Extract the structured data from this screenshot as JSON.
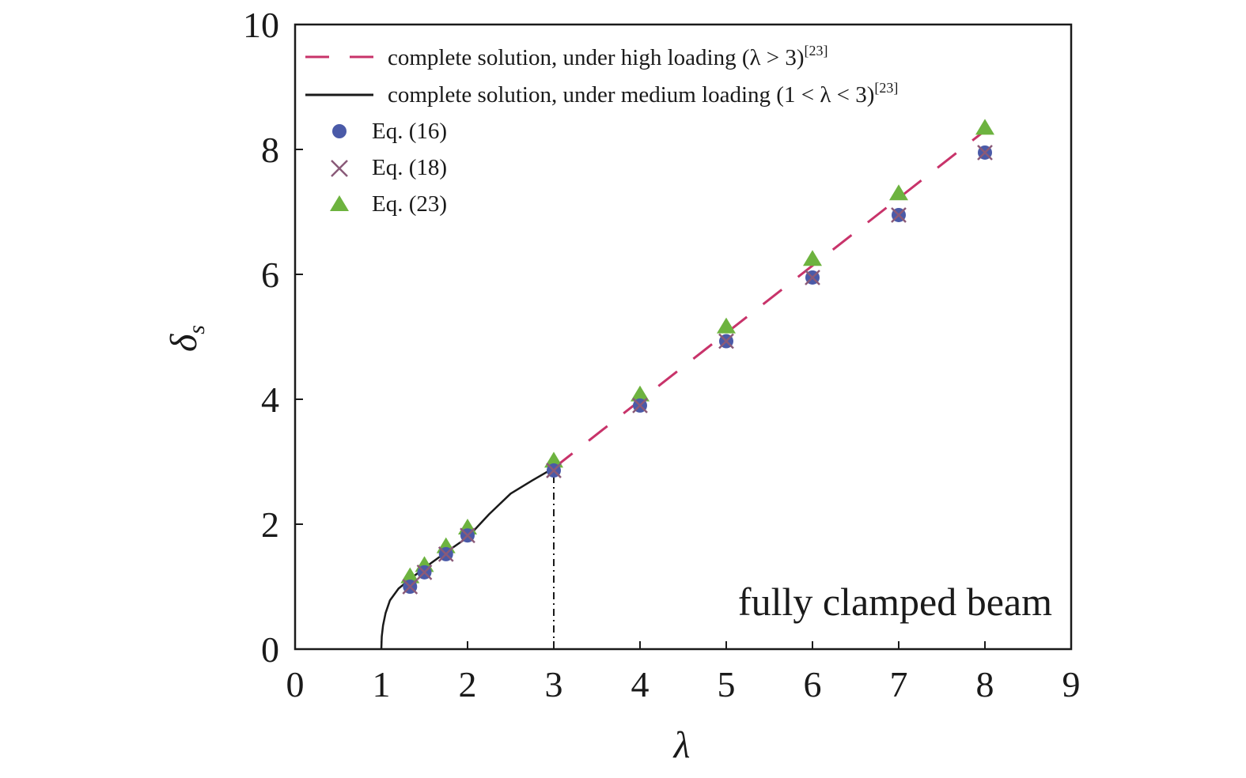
{
  "chart_data": {
    "type": "line",
    "xlabel": "λ",
    "ylabel": "δ",
    "ylabel_sub": "s",
    "xlim": [
      0,
      9
    ],
    "ylim": [
      0,
      10
    ],
    "xticks": [
      "0",
      "1",
      "2",
      "3",
      "4",
      "5",
      "6",
      "7",
      "8",
      "9"
    ],
    "yticks": [
      "0",
      "2",
      "4",
      "6",
      "8",
      "10"
    ],
    "grid": false,
    "legend_position": "top-left",
    "annotation": "fully clamped beam",
    "series": [
      {
        "key": "high",
        "name": "complete solution, under high loading (λ > 3)",
        "legend_sup": "[23]",
        "style": "dashed",
        "color": "#c8336a",
        "x": [
          3,
          8
        ],
        "y": [
          2.9,
          8.3
        ]
      },
      {
        "key": "medium",
        "name": "complete solution, under medium loading (1 < λ < 3)",
        "legend_sup": "[23]",
        "style": "solid",
        "color": "#1a1a1a",
        "x": [
          1.0,
          1.005,
          1.02,
          1.05,
          1.1,
          1.2,
          1.333,
          1.5,
          1.75,
          2.0,
          2.25,
          2.5,
          2.75,
          3.0
        ],
        "y": [
          0.0,
          0.2,
          0.38,
          0.58,
          0.78,
          0.97,
          1.12,
          1.3,
          1.55,
          1.79,
          2.16,
          2.49,
          2.7,
          2.9
        ]
      },
      {
        "key": "eq16",
        "name": "Eq. (16)",
        "marker": "circle",
        "color": "#4a5aa8",
        "x": [
          1.333,
          1.5,
          1.75,
          2.0,
          3.0,
          4.0,
          5.0,
          6.0,
          7.0,
          8.0
        ],
        "y": [
          1.0,
          1.23,
          1.52,
          1.82,
          2.86,
          3.9,
          4.93,
          5.95,
          6.95,
          7.95
        ]
      },
      {
        "key": "eq18",
        "name": "Eq. (18)",
        "marker": "cross",
        "color": "#8a5a78",
        "x": [
          1.333,
          1.5,
          1.75,
          2.0,
          3.0,
          4.0,
          5.0,
          6.0,
          7.0,
          8.0
        ],
        "y": [
          1.0,
          1.23,
          1.52,
          1.82,
          2.86,
          3.9,
          4.93,
          5.95,
          6.95,
          7.95
        ]
      },
      {
        "key": "eq23",
        "name": "Eq. (23)",
        "marker": "triangle",
        "color": "#6db33f",
        "x": [
          1.333,
          1.5,
          1.75,
          2.0,
          3.0,
          4.0,
          5.0,
          6.0,
          7.0,
          8.0
        ],
        "y": [
          1.17,
          1.35,
          1.65,
          1.95,
          3.02,
          4.08,
          5.17,
          6.25,
          7.3,
          8.35
        ]
      }
    ],
    "reference_line": {
      "style": "dash-dot",
      "x": 3.0,
      "y": [
        0,
        2.86
      ],
      "color": "#1a1a1a"
    }
  }
}
